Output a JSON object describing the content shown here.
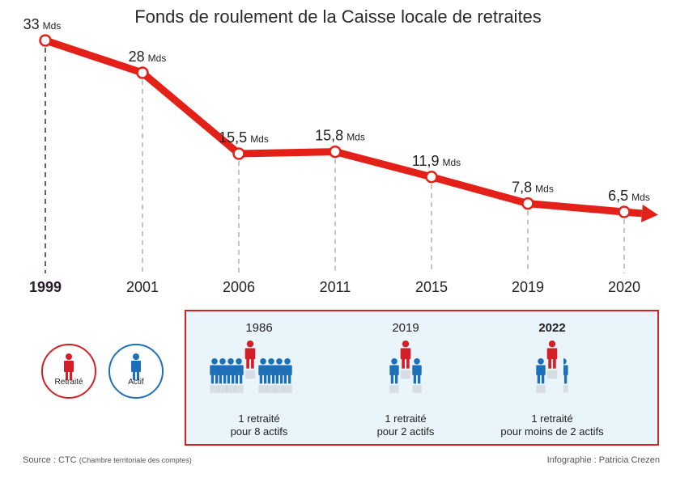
{
  "title": "Fonds de roulement de la Caisse locale de retraites",
  "chart_data": {
    "type": "line",
    "title": "Fonds de roulement de la Caisse locale de retraites",
    "x": [
      "1999",
      "2001",
      "2006",
      "2011",
      "2015",
      "2019",
      "2020"
    ],
    "values": [
      33,
      28,
      15.5,
      15.8,
      11.9,
      7.8,
      6.5
    ],
    "labels": [
      "33",
      "28",
      "15,5",
      "15,8",
      "11,9",
      "7,8",
      "6,5"
    ],
    "unit": "Mds",
    "highlighted_x": "1999",
    "series_color": "#e32119",
    "ylim": [
      0,
      35
    ],
    "grid": false
  },
  "ratios": [
    {
      "year": "1986",
      "bold": false,
      "caption_line1": "1 retraité",
      "caption_line2": "pour 8 actifs",
      "actifs": 8
    },
    {
      "year": "2019",
      "bold": false,
      "caption_line1": "1 retraité",
      "caption_line2": "pour 2 actifs",
      "actifs": 2
    },
    {
      "year": "2022",
      "bold": true,
      "caption_line1": "1 retraité",
      "caption_line2": "pour moins de 2 actifs",
      "actifs": 1.8
    }
  ],
  "legend": {
    "retraite_label": "Retraité",
    "actif_label": "Actif",
    "retraite_color": "#d41f26",
    "actif_color": "#1d6fb8"
  },
  "footer": {
    "source_main": "Source : CTC",
    "source_detail": "(Chambre territoriale des comptes)",
    "credit": "Infographie : Patricia Crezen"
  }
}
